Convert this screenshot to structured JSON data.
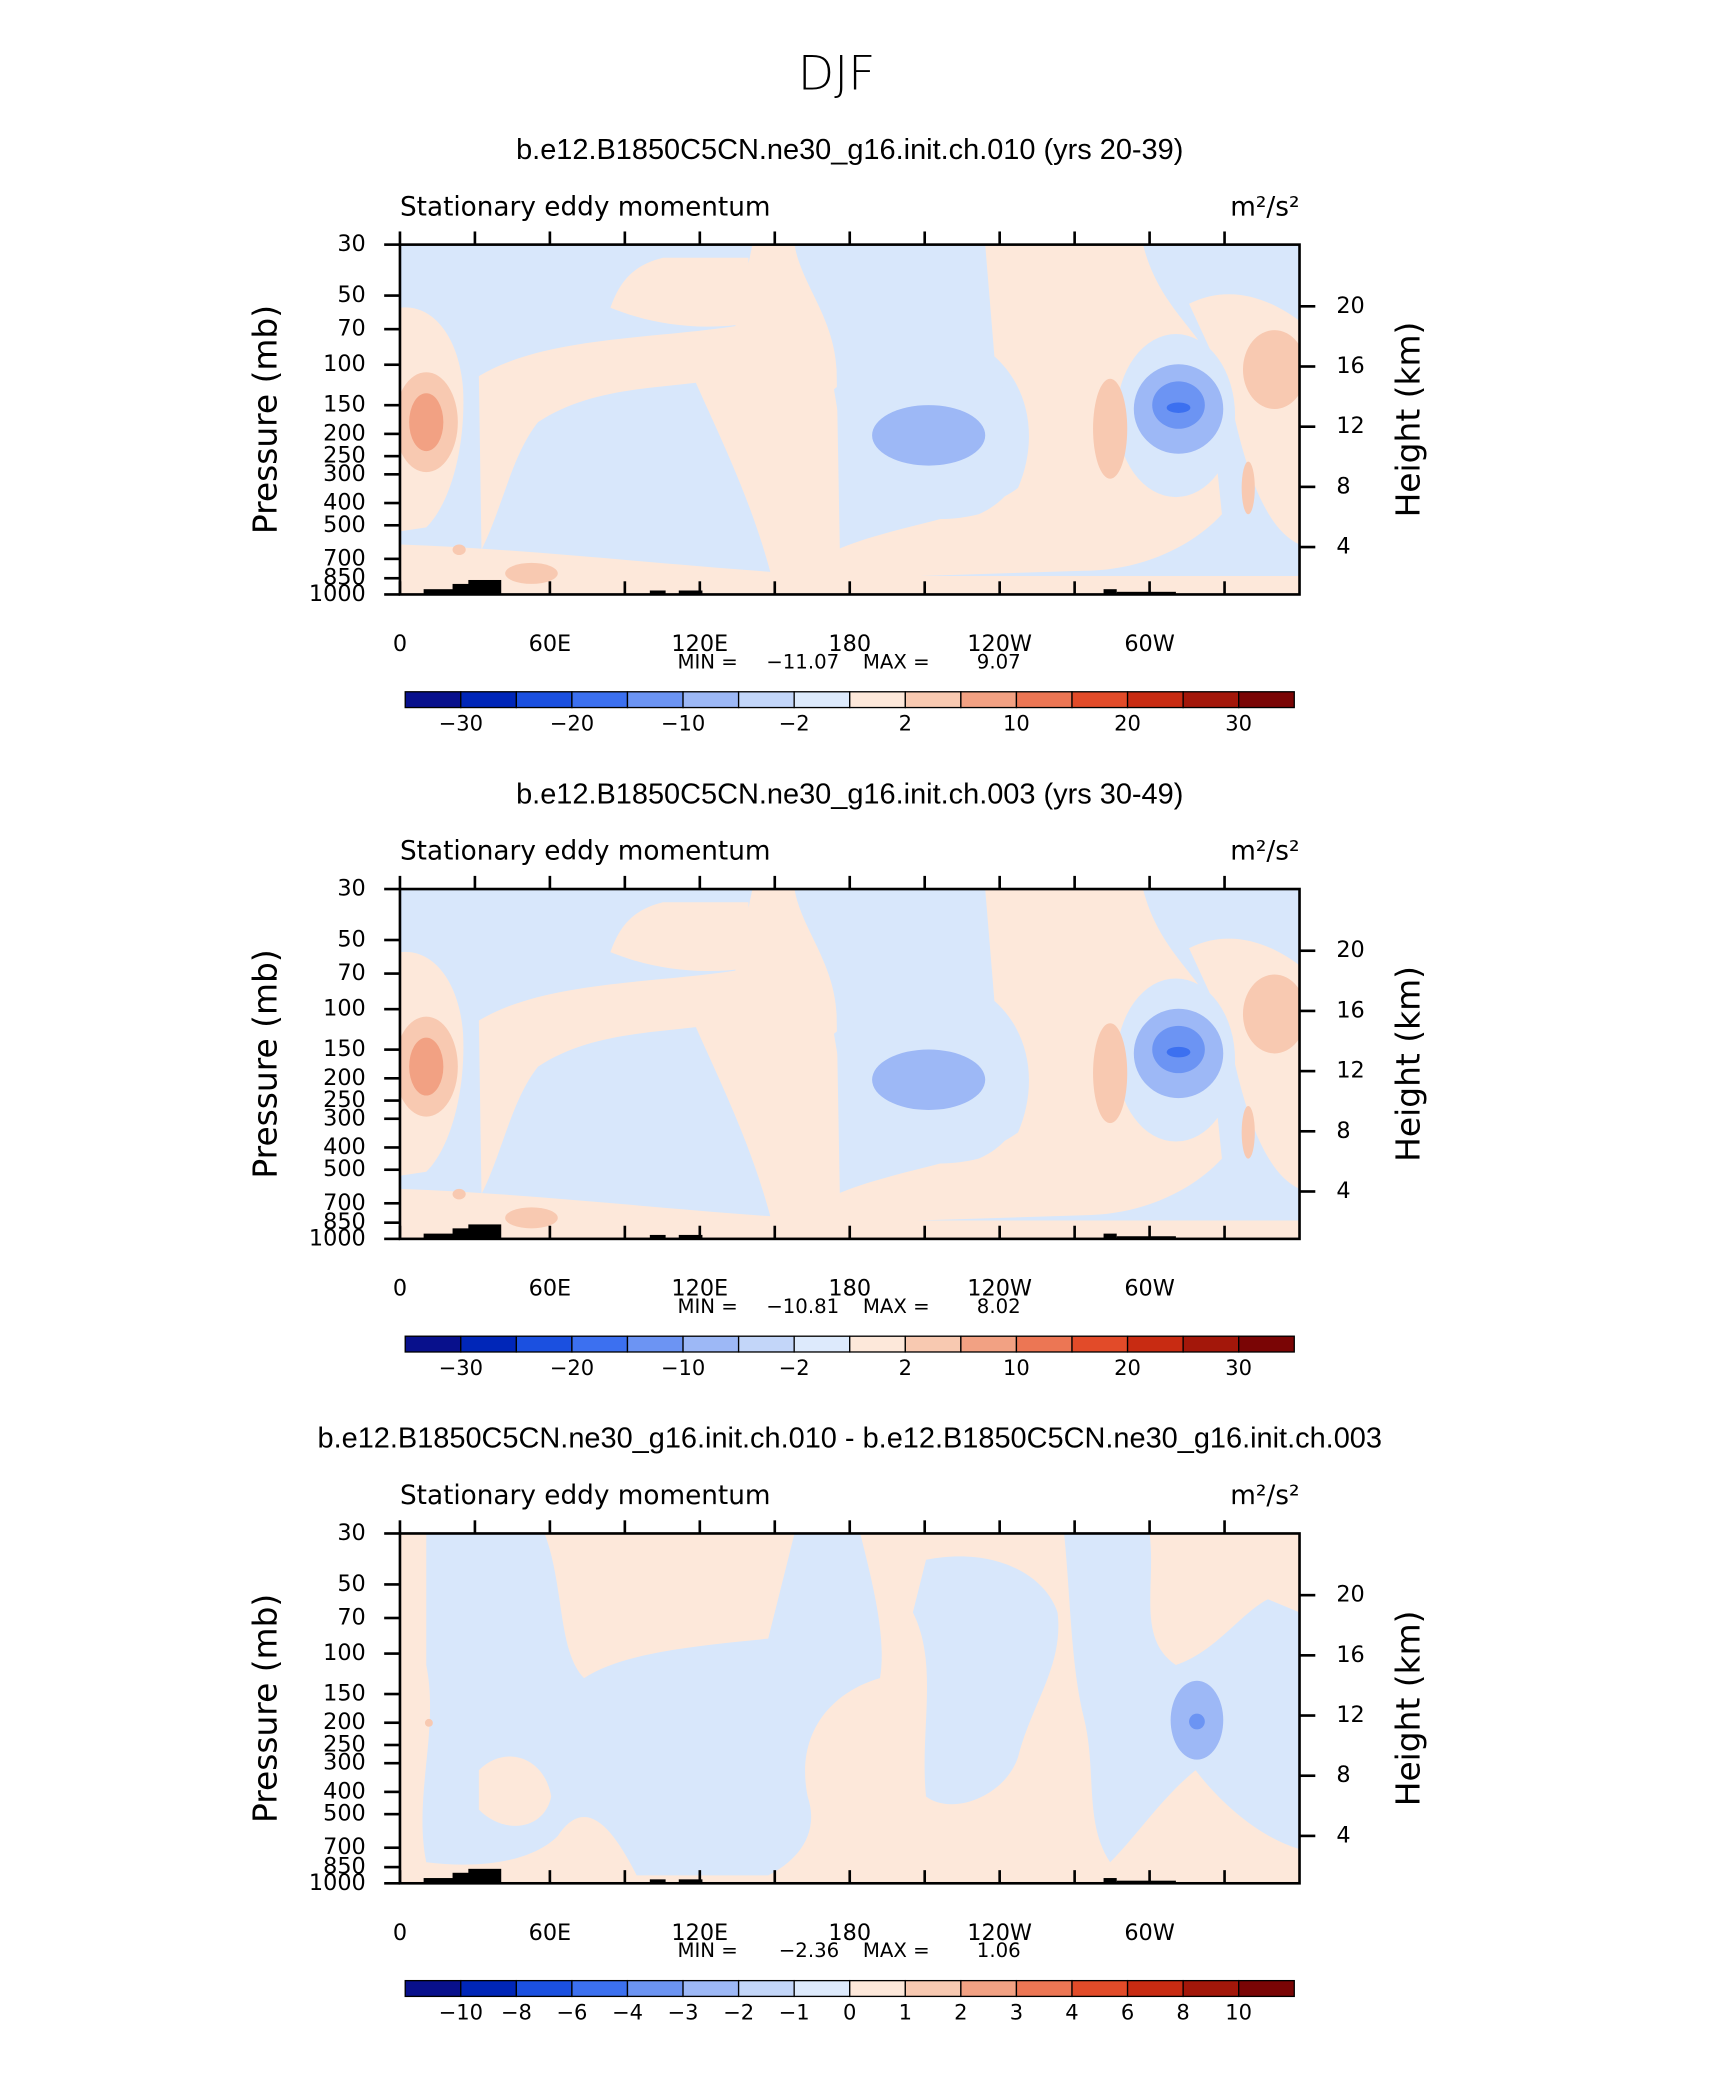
{
  "chart_data": {
    "type": "contour",
    "title": "DJF",
    "xlim": [
      0,
      360
    ],
    "xticks": [
      0,
      {
        "value": 60,
        "label": "60E"
      },
      {
        "value": 120,
        "label": "120E"
      },
      180,
      {
        "value": 240,
        "label": "120W"
      },
      {
        "value": 300,
        "label": "60W"
      }
    ],
    "xminor_ticks": [
      30,
      90,
      150,
      210,
      270,
      330
    ],
    "log_y": true,
    "ylim": [
      30,
      1000
    ],
    "yticks": [
      30,
      50,
      70,
      100,
      150,
      200,
      250,
      300,
      400,
      500,
      700,
      850,
      1000
    ],
    "ylabel": "Pressure (mb)",
    "y2lim": [
      24.1,
      0.85
    ],
    "y2ticks": [
      4,
      8,
      12,
      16,
      20
    ],
    "y2label": "Height (km)",
    "panels": [
      {
        "title": "b.e12.B1850C5CN.ne30_g16.init.ch.010 (yrs 20-39)",
        "subtitle": "Stationary eddy momentum",
        "units": "m²/s²",
        "min_text": "MIN =",
        "min": {
          "value": -11.07,
          "label": "−11.07"
        },
        "max_text": "MAX =",
        "max": 9.07,
        "pattern": "A",
        "colorbar": {
          "colors": [
            "#08108c",
            "#0026b8",
            "#1b50e0",
            "#3c70f0",
            "#6c94f3",
            "#9db8f6",
            "#c3d6f9",
            "#ddeafc",
            "#fde8da",
            "#f8c9b1",
            "#f2a183",
            "#ec7654",
            "#e24b29",
            "#c82b12",
            "#a3170a",
            "#7a0505"
          ],
          "labels": [
            {
              "value": -30,
              "label": "−30"
            },
            {
              "value": -20,
              "label": "−20"
            },
            {
              "value": -10,
              "label": "−10"
            },
            {
              "value": -2,
              "label": "−2"
            },
            2,
            10,
            20,
            30
          ]
        }
      },
      {
        "title": "b.e12.B1850C5CN.ne30_g16.init.ch.003 (yrs 30-49)",
        "subtitle": "Stationary eddy momentum",
        "units": "m²/s²",
        "min_text": "MIN =",
        "min": {
          "value": -10.81,
          "label": "−10.81"
        },
        "max_text": "MAX =",
        "max": 8.02,
        "pattern": "A",
        "colorbar": {
          "colors": [
            "#08108c",
            "#0026b8",
            "#1b50e0",
            "#3c70f0",
            "#6c94f3",
            "#9db8f6",
            "#c3d6f9",
            "#ddeafc",
            "#fde8da",
            "#f8c9b1",
            "#f2a183",
            "#ec7654",
            "#e24b29",
            "#c82b12",
            "#a3170a",
            "#7a0505"
          ],
          "labels": [
            {
              "value": -30,
              "label": "−30"
            },
            {
              "value": -20,
              "label": "−20"
            },
            {
              "value": -10,
              "label": "−10"
            },
            {
              "value": -2,
              "label": "−2"
            },
            2,
            10,
            20,
            30
          ]
        }
      },
      {
        "title": "b.e12.B1850C5CN.ne30_g16.init.ch.010 - b.e12.B1850C5CN.ne30_g16.init.ch.003",
        "subtitle": "Stationary eddy momentum",
        "units": "m²/s²",
        "min_text": "MIN =",
        "min": {
          "value": -2.36,
          "label": "−2.36"
        },
        "max_text": "MAX =",
        "max": 1.06,
        "pattern": "B",
        "colorbar": {
          "colors": [
            "#08108c",
            "#0026b8",
            "#1b50e0",
            "#3c70f0",
            "#6c94f3",
            "#9db8f6",
            "#c3d6f9",
            "#ddeafc",
            "#fde8da",
            "#f8c9b1",
            "#f2a183",
            "#ec7654",
            "#e24b29",
            "#c82b12",
            "#a3170a",
            "#7a0505"
          ],
          "labels": [
            {
              "value": -10,
              "label": "−10"
            },
            {
              "value": -8,
              "label": "−8"
            },
            {
              "value": -6,
              "label": "−6"
            },
            {
              "value": -4,
              "label": "−4"
            },
            {
              "value": -3,
              "label": "−3"
            },
            {
              "value": -2,
              "label": "−2"
            },
            {
              "value": -1,
              "label": "−1"
            },
            0,
            1,
            2,
            3,
            4,
            6,
            8,
            10
          ]
        }
      }
    ]
  }
}
